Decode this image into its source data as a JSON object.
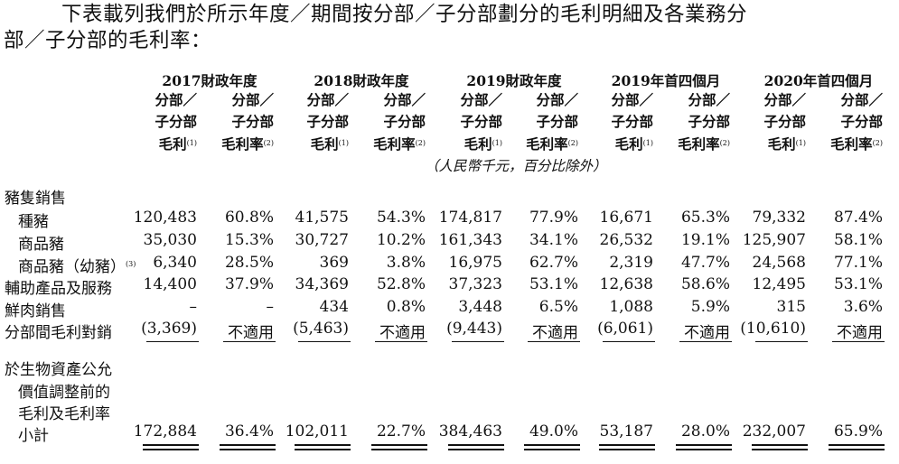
{
  "intro": {
    "line1": "下表載列我們於所示年度／期間按分部／子分部劃分的毛利明細及各業務分",
    "line2": "部／子分部的毛利率："
  },
  "table": {
    "periods": [
      "2017財政年度",
      "2018財政年度",
      "2019財政年度",
      "2019年首四個月",
      "2020年首四個月"
    ],
    "col_header_profit": [
      "分部／",
      "子分部",
      "毛利"
    ],
    "col_header_margin": [
      "分部／",
      "子分部",
      "毛利率"
    ],
    "profit_note_mark": "(1)",
    "margin_note_mark": "(2)",
    "unit_note": "（人民幣千元，百分比除外）",
    "section_label": "豬隻銷售",
    "rows": [
      {
        "label": "種豬",
        "values": [
          "120,483",
          "60.8%",
          "41,575",
          "54.3%",
          "174,817",
          "77.9%",
          "16,671",
          "65.3%",
          "79,332",
          "87.4%"
        ]
      },
      {
        "label": "商品豬",
        "values": [
          "35,030",
          "15.3%",
          "30,727",
          "10.2%",
          "161,343",
          "34.1%",
          "26,532",
          "19.1%",
          "125,907",
          "58.1%"
        ]
      },
      {
        "label": "商品豬（幼豬）",
        "note": "(3)",
        "values": [
          "6,340",
          "28.5%",
          "369",
          "3.8%",
          "16,975",
          "62.7%",
          "2,319",
          "47.7%",
          "24,568",
          "77.1%"
        ]
      },
      {
        "label": "輔助產品及服務",
        "values": [
          "14,400",
          "37.9%",
          "34,369",
          "52.8%",
          "37,323",
          "53.1%",
          "12,638",
          "58.6%",
          "12,495",
          "53.1%"
        ]
      },
      {
        "label": "鮮肉銷售",
        "values": [
          "–",
          "–",
          "434",
          "0.8%",
          "3,448",
          "6.5%",
          "1,088",
          "5.9%",
          "315",
          "3.6%"
        ]
      },
      {
        "label": "分部間毛利對銷",
        "values": [
          "(3,369)",
          "不適用",
          "(5,463)",
          "不適用",
          "(9,443)",
          "不適用",
          "(6,061)",
          "不適用",
          "(10,610)",
          "不適用"
        ]
      }
    ],
    "total_label_lines": [
      "於生物資產公允",
      "價值調整前的",
      "毛利及毛利率",
      "小計"
    ],
    "total_values": [
      "172,884",
      "36.4%",
      "102,011",
      "22.7%",
      "384,463",
      "49.0%",
      "53,187",
      "28.0%",
      "232,007",
      "65.9%"
    ]
  }
}
